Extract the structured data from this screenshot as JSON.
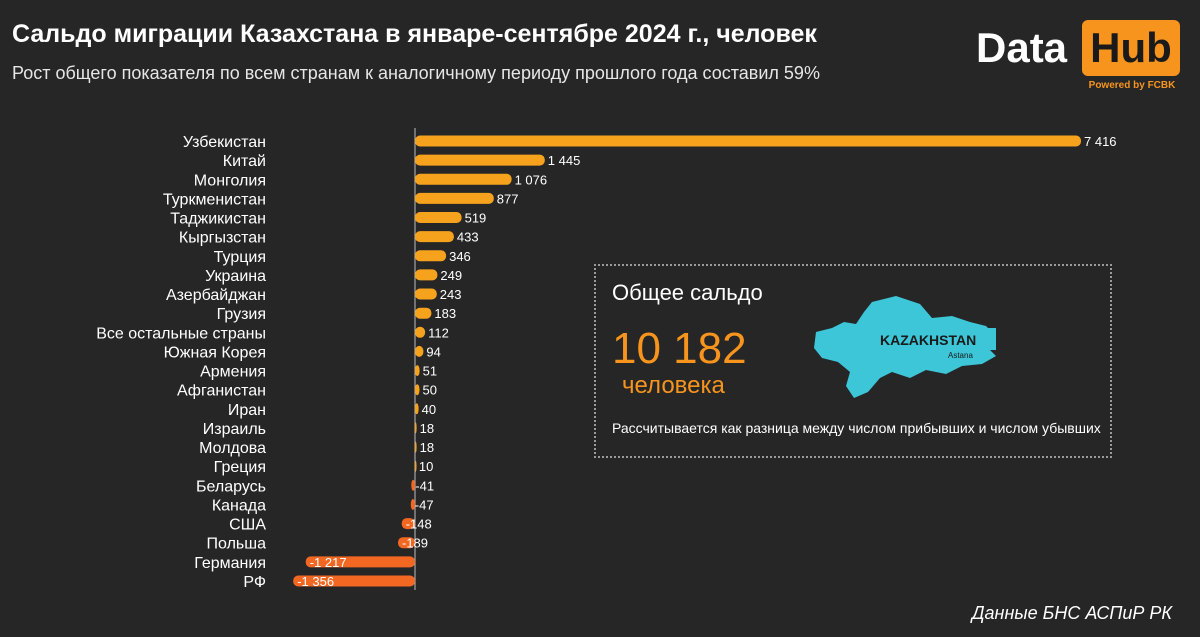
{
  "header": {
    "title": "Сальдо миграции Казахстана в январе-сентябре 2024 г., человек",
    "subtitle": "Рост общего показателя по всем странам к аналогичному периоду прошлого года составил 59%"
  },
  "logo": {
    "word1": "Data",
    "word2": "Hub",
    "powered": "Powered by FCBK"
  },
  "summary": {
    "heading": "Общее сальдо",
    "value": "10 182",
    "unit": "человека",
    "note": "Рассчитывается как разница между числом прибывших и числом убывших",
    "map_label": "KAZAKHSTAN",
    "map_sublabel": "Astana",
    "map_icon": "kazakhstan-map-icon"
  },
  "source": "Данные БНС АСПиР РК",
  "colors": {
    "background": "#262626",
    "accent": "#f7941d",
    "bar_positive": "#f7a21d",
    "bar_negative": "#f26722",
    "map": "#3cc6d8"
  },
  "chart_data": {
    "type": "bar",
    "orientation": "horizontal",
    "categories": [
      "Узбекистан",
      "Китай",
      "Монголия",
      "Туркменистан",
      "Таджикистан",
      "Кыргызстан",
      "Турция",
      "Украина",
      "Азербайджан",
      "Грузия",
      "Все остальные страны",
      "Южная Корея",
      "Армения",
      "Афганистан",
      "Иран",
      "Израиль",
      "Молдова",
      "Греция",
      "Беларусь",
      "Канада",
      "США",
      "Польша",
      "Германия",
      "РФ"
    ],
    "values": [
      7416,
      1445,
      1076,
      877,
      519,
      433,
      346,
      249,
      243,
      183,
      112,
      94,
      51,
      50,
      40,
      18,
      18,
      10,
      -41,
      -47,
      -148,
      -189,
      -1217,
      -1356
    ],
    "labels": [
      "7 416",
      "1 445",
      "1 076",
      "877",
      "519",
      "433",
      "346",
      "249",
      "243",
      "183",
      "112",
      "94",
      "51",
      "50",
      "40",
      "18",
      "18",
      "10",
      "-41",
      "-47",
      "-148",
      "-189",
      "-1 217",
      "-1 356"
    ],
    "title": "Сальдо миграции Казахстана в январе-сентябре 2024 г., человек",
    "xlim": [
      -1356,
      7416
    ],
    "grid": false
  }
}
